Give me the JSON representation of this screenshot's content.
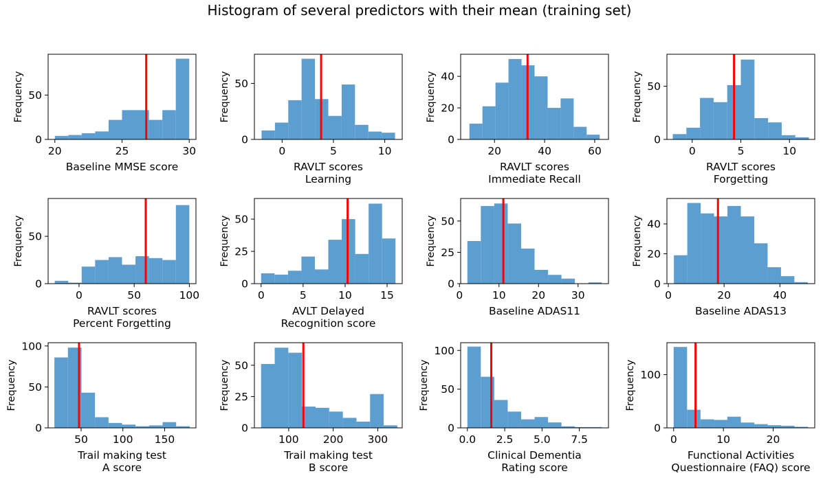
{
  "title": "Histogram of several predictors with their mean (training set)",
  "colors": {
    "bar": "#5b9ecf",
    "mean_line": "#ff0000"
  },
  "chart_data": [
    {
      "type": "bar",
      "xlabel": [
        "Baseline MMSE score"
      ],
      "ylabel": "Frequency",
      "xlim": [
        19.5,
        30.5
      ],
      "ylim": [
        0,
        96
      ],
      "xticks": [
        20,
        25,
        30
      ],
      "yticks": [
        0,
        50
      ],
      "bin_edges": [
        20,
        21,
        22,
        23,
        24,
        25,
        26,
        27,
        28,
        29,
        30
      ],
      "values": [
        4,
        5,
        7,
        9,
        22,
        33,
        33,
        22,
        33,
        91
      ],
      "mean": 26.8
    },
    {
      "type": "bar",
      "xlabel": [
        "RAVLT scores",
        "Learning"
      ],
      "ylabel": "Frequency",
      "xlim": [
        -2.7,
        11.7
      ],
      "ylim": [
        0,
        76
      ],
      "xticks": [
        0,
        5,
        10
      ],
      "yticks": [
        0,
        50
      ],
      "bin_edges": [
        -2,
        -0.7,
        0.6,
        1.9,
        3.2,
        4.5,
        5.8,
        7.1,
        8.4,
        9.7,
        11
      ],
      "values": [
        8,
        15,
        35,
        72,
        36,
        21,
        49,
        13,
        7,
        6
      ],
      "mean": 3.8
    },
    {
      "type": "bar",
      "xlabel": [
        "RAVLT scores",
        "Immediate Recall"
      ],
      "ylabel": "Frequency",
      "xlim": [
        6.5,
        65.5
      ],
      "ylim": [
        0,
        54
      ],
      "xticks": [
        20,
        40,
        60
      ],
      "yticks": [
        0,
        20,
        40
      ],
      "bin_edges": [
        10,
        15.2,
        20.4,
        25.6,
        30.8,
        36,
        41.2,
        46.4,
        51.6,
        56.8,
        62
      ],
      "values": [
        10,
        21,
        36,
        51,
        47,
        40,
        20,
        26,
        8,
        3
      ],
      "mean": 33.2
    },
    {
      "type": "bar",
      "xlabel": [
        "RAVLT scores",
        "Forgetting"
      ],
      "ylabel": "Frequency",
      "xlim": [
        -2.6,
        12.6
      ],
      "ylim": [
        0,
        80
      ],
      "xticks": [
        0,
        5,
        10
      ],
      "yticks": [
        0,
        50
      ],
      "bin_edges": [
        -2,
        -0.6,
        0.8,
        2.2,
        3.6,
        5,
        6.4,
        7.8,
        9.2,
        10.6,
        12
      ],
      "values": [
        5,
        11,
        39,
        35,
        51,
        75,
        20,
        16,
        4,
        2
      ],
      "mean": 4.3
    },
    {
      "type": "bar",
      "xlabel": [
        "RAVLT scores",
        "Percent Forgetting"
      ],
      "ylabel": "Frequency",
      "xlim": [
        -28,
        106
      ],
      "ylim": [
        0,
        90
      ],
      "xticks": [
        0,
        50,
        100
      ],
      "yticks": [
        0,
        50
      ],
      "bin_edges": [
        -22,
        -9.8,
        2.4,
        14.6,
        26.8,
        39,
        51.2,
        63.4,
        75.6,
        87.8,
        100
      ],
      "values": [
        3,
        1,
        18,
        25,
        28,
        20,
        29,
        27,
        25,
        83
      ],
      "mean": 60.5
    },
    {
      "type": "bar",
      "xlabel": [
        "AVLT Delayed",
        "Recognition score"
      ],
      "ylabel": "Frequency",
      "xlim": [
        -0.8,
        16.8
      ],
      "ylim": [
        0,
        66
      ],
      "xticks": [
        0,
        5,
        10,
        15
      ],
      "yticks": [
        0,
        25,
        50
      ],
      "bin_edges": [
        0,
        1.6,
        3.2,
        4.8,
        6.4,
        8,
        9.6,
        11.2,
        12.8,
        14.4,
        16
      ],
      "values": [
        8,
        7,
        10,
        21,
        11,
        34,
        50,
        23,
        62,
        35
      ],
      "mean": 10.3
    },
    {
      "type": "bar",
      "xlabel": [
        "Baseline ADAS11"
      ],
      "ylabel": "Frequency",
      "xlim": [
        0.3,
        37.7
      ],
      "ylim": [
        0,
        68
      ],
      "xticks": [
        0,
        10,
        20,
        30
      ],
      "yticks": [
        0,
        25,
        50
      ],
      "bin_edges": [
        2,
        5.4,
        8.8,
        12.2,
        15.6,
        19,
        22.4,
        25.8,
        29.2,
        32.6,
        36
      ],
      "values": [
        34,
        62,
        64,
        48,
        28,
        11,
        7,
        4,
        0,
        1
      ],
      "mean": 11.1
    },
    {
      "type": "bar",
      "xlabel": [
        "Baseline ADAS13"
      ],
      "ylabel": "Frequency",
      "xlim": [
        -0.5,
        52.5
      ],
      "ylim": [
        0,
        57
      ],
      "xticks": [
        0,
        20,
        40
      ],
      "yticks": [
        0,
        20,
        40
      ],
      "bin_edges": [
        2,
        6.8,
        11.6,
        16.4,
        21.2,
        26,
        30.8,
        35.6,
        40.4,
        45.2,
        50
      ],
      "values": [
        19,
        54,
        47,
        45,
        52,
        45,
        27,
        11,
        5,
        1
      ],
      "mean": 17.8
    },
    {
      "type": "bar",
      "xlabel": [
        "Trail making test",
        "A score"
      ],
      "ylabel": "Frequency",
      "xlim": [
        10.5,
        187.5
      ],
      "ylim": [
        0,
        104
      ],
      "xticks": [
        50,
        100,
        150
      ],
      "yticks": [
        0,
        50,
        100
      ],
      "bin_edges": [
        18,
        34.2,
        50.4,
        66.6,
        82.8,
        99,
        115.2,
        131.4,
        147.6,
        163.8,
        180
      ],
      "values": [
        86,
        98,
        43,
        13,
        6,
        4,
        2,
        3,
        7,
        2
      ],
      "mean": 47.5
    },
    {
      "type": "bar",
      "xlabel": [
        "Trail making test",
        "B score"
      ],
      "ylabel": "Frequency",
      "xlim": [
        23,
        355
      ],
      "ylim": [
        0,
        68
      ],
      "xticks": [
        100,
        200,
        300
      ],
      "yticks": [
        0,
        25,
        50
      ],
      "bin_edges": [
        38,
        68.6,
        99.2,
        129.8,
        160.4,
        191,
        221.6,
        252.2,
        282.8,
        313.4,
        344
      ],
      "values": [
        51,
        64,
        60,
        17,
        16,
        13,
        8,
        5,
        27,
        2
      ],
      "mean": 133
    },
    {
      "type": "bar",
      "xlabel": [
        "Clinical Dementia",
        "Rating score"
      ],
      "ylabel": "Frequency",
      "xlim": [
        -0.45,
        9.45
      ],
      "ylim": [
        0,
        110
      ],
      "xticks": [
        0.0,
        2.5,
        5.0,
        7.5
      ],
      "xtick_labels": [
        "0.0",
        "2.5",
        "5.0",
        "7.5"
      ],
      "yticks": [
        0,
        50,
        100
      ],
      "bin_edges": [
        0,
        0.9,
        1.8,
        2.7,
        3.6,
        4.5,
        5.4,
        6.3,
        7.2,
        8.1,
        9
      ],
      "values": [
        105,
        66,
        36,
        21,
        11,
        14,
        7,
        2,
        1,
        1
      ],
      "mean": 1.6
    },
    {
      "type": "bar",
      "xlabel": [
        "Functional Activities",
        "Questionnaire (FAQ) score"
      ],
      "ylabel": "Frequency",
      "xlim": [
        -1.35,
        28.35
      ],
      "ylim": [
        0,
        160
      ],
      "xticks": [
        0,
        10,
        20
      ],
      "yticks": [
        0,
        100
      ],
      "bin_edges": [
        0,
        2.7,
        5.4,
        8.1,
        10.8,
        13.5,
        16.2,
        18.9,
        21.6,
        24.3,
        27
      ],
      "values": [
        152,
        34,
        16,
        15,
        21,
        10,
        7,
        5,
        4,
        2
      ],
      "mean": 4.4
    }
  ]
}
